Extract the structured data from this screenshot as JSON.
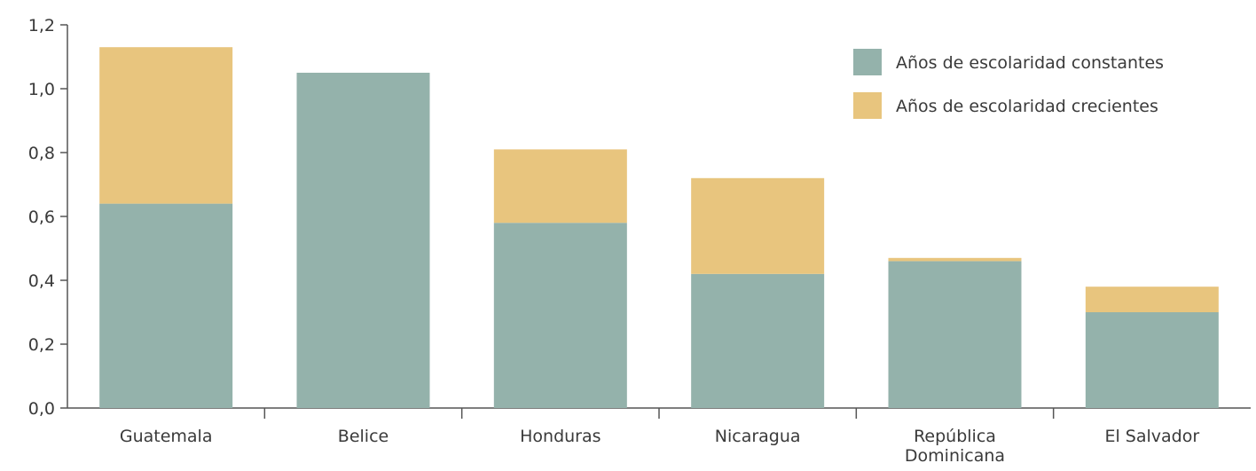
{
  "chart_data": {
    "type": "bar",
    "stacked": true,
    "title": "",
    "xlabel": "",
    "ylabel": "",
    "ylim": [
      0,
      1.2
    ],
    "yticks": [
      "0,0",
      "0,2",
      "0,4",
      "0,6",
      "0,8",
      "1,0",
      "1,2"
    ],
    "ytick_values": [
      0,
      0.2,
      0.4,
      0.6,
      0.8,
      1.0,
      1.2
    ],
    "categories": [
      [
        "Guatemala"
      ],
      [
        "Belice"
      ],
      [
        "Honduras"
      ],
      [
        "Nicaragua"
      ],
      [
        "República",
        "Dominicana"
      ],
      [
        "El Salvador"
      ]
    ],
    "series": [
      {
        "name": "Años de escolaridad constantes",
        "color": "#94b2ab",
        "values": [
          0.64,
          1.05,
          0.58,
          0.42,
          0.46,
          0.3
        ]
      },
      {
        "name": "Años de escolaridad crecientes",
        "color": "#e8c57e",
        "values": [
          0.49,
          0.0,
          0.23,
          0.3,
          0.01,
          0.08
        ]
      }
    ],
    "legend_position": "top-right",
    "grid": false
  }
}
